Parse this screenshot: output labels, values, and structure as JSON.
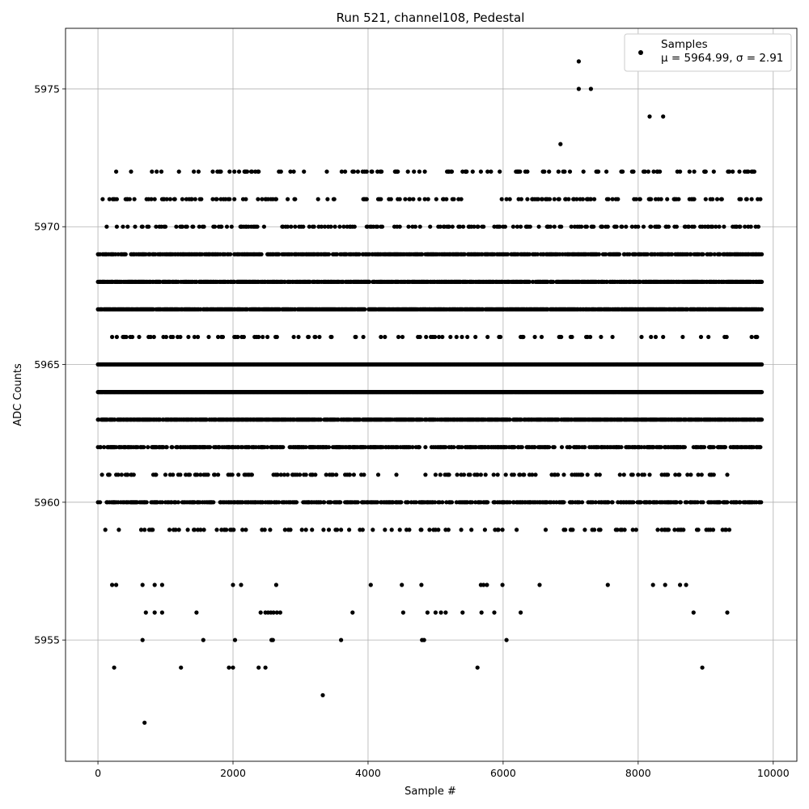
{
  "chart_data": {
    "type": "scatter",
    "title": "Run 521, channel108, Pedestal",
    "xlabel": "Sample #",
    "ylabel": "ADC Counts",
    "xlim": [
      -480,
      10350
    ],
    "ylim": [
      5950.6,
      5977.2
    ],
    "xticks": [
      0,
      2000,
      4000,
      6000,
      8000,
      10000
    ],
    "yticks": [
      5955,
      5960,
      5965,
      5970,
      5975
    ],
    "grid": true,
    "marker_color": "#000000",
    "legend": {
      "position": "top-right",
      "label": "Samples",
      "stats": "μ = 5964.99, σ = 2.91"
    },
    "series": [
      {
        "name": "Samples",
        "dense_bands": [
          {
            "y": 5959,
            "x": [
              0,
              9500
            ],
            "density": 0.1
          },
          {
            "y": 5960,
            "x": [
              0,
              9830
            ],
            "density": 0.45
          },
          {
            "y": 5961,
            "x": [
              0,
              9500
            ],
            "density": 0.15
          },
          {
            "y": 5962,
            "x": [
              0,
              9830
            ],
            "density": 0.5
          },
          {
            "y": 5963,
            "x": [
              0,
              9830
            ],
            "density": 0.8
          },
          {
            "y": 5964,
            "x": [
              0,
              9830
            ],
            "density": 1.0
          },
          {
            "y": 5965,
            "x": [
              0,
              9830
            ],
            "density": 1.0
          },
          {
            "y": 5966,
            "x": [
              0,
              9830
            ],
            "density": 0.1
          },
          {
            "y": 5967,
            "x": [
              0,
              9830
            ],
            "density": 0.8
          },
          {
            "y": 5968,
            "x": [
              0,
              9830
            ],
            "density": 0.7
          },
          {
            "y": 5969,
            "x": [
              0,
              9830
            ],
            "density": 0.55
          },
          {
            "y": 5970,
            "x": [
              0,
              9830
            ],
            "density": 0.2
          },
          {
            "y": 5971,
            "x": [
              0,
              9830
            ],
            "density": 0.15
          },
          {
            "y": 5972,
            "x": [
              0,
              9830
            ],
            "density": 0.1
          }
        ],
        "points": [
          [
            690,
            5952
          ],
          [
            3330,
            5953
          ],
          [
            240,
            5954
          ],
          [
            1230,
            5954
          ],
          [
            1940,
            5954
          ],
          [
            2000,
            5954
          ],
          [
            2380,
            5954
          ],
          [
            2480,
            5954
          ],
          [
            5620,
            5954
          ],
          [
            8950,
            5954
          ],
          [
            660,
            5955
          ],
          [
            1560,
            5955
          ],
          [
            2030,
            5955
          ],
          [
            2570,
            5955
          ],
          [
            2590,
            5955
          ],
          [
            3600,
            5955
          ],
          [
            4800,
            5955
          ],
          [
            4830,
            5955
          ],
          [
            6050,
            5955
          ],
          [
            710,
            5956
          ],
          [
            840,
            5956
          ],
          [
            950,
            5956
          ],
          [
            1460,
            5956
          ],
          [
            2410,
            5956
          ],
          [
            2480,
            5956
          ],
          [
            2520,
            5956
          ],
          [
            2560,
            5956
          ],
          [
            2600,
            5956
          ],
          [
            2650,
            5956
          ],
          [
            2700,
            5956
          ],
          [
            3770,
            5956
          ],
          [
            4520,
            5956
          ],
          [
            4880,
            5956
          ],
          [
            5000,
            5956
          ],
          [
            5080,
            5956
          ],
          [
            5150,
            5956
          ],
          [
            5400,
            5956
          ],
          [
            5680,
            5956
          ],
          [
            5870,
            5956
          ],
          [
            6260,
            5956
          ],
          [
            8820,
            5956
          ],
          [
            9320,
            5956
          ],
          [
            210,
            5957
          ],
          [
            270,
            5957
          ],
          [
            660,
            5957
          ],
          [
            840,
            5957
          ],
          [
            950,
            5957
          ],
          [
            2000,
            5957
          ],
          [
            2120,
            5957
          ],
          [
            2640,
            5957
          ],
          [
            4040,
            5957
          ],
          [
            4500,
            5957
          ],
          [
            4790,
            5957
          ],
          [
            5670,
            5957
          ],
          [
            5710,
            5957
          ],
          [
            5760,
            5957
          ],
          [
            5990,
            5957
          ],
          [
            6540,
            5957
          ],
          [
            7550,
            5957
          ],
          [
            8220,
            5957
          ],
          [
            8400,
            5957
          ],
          [
            8620,
            5957
          ],
          [
            8710,
            5957
          ],
          [
            6850,
            5973
          ],
          [
            8170,
            5974
          ],
          [
            8370,
            5974
          ],
          [
            7120,
            5975
          ],
          [
            7300,
            5975
          ],
          [
            7120,
            5976
          ]
        ]
      }
    ]
  }
}
